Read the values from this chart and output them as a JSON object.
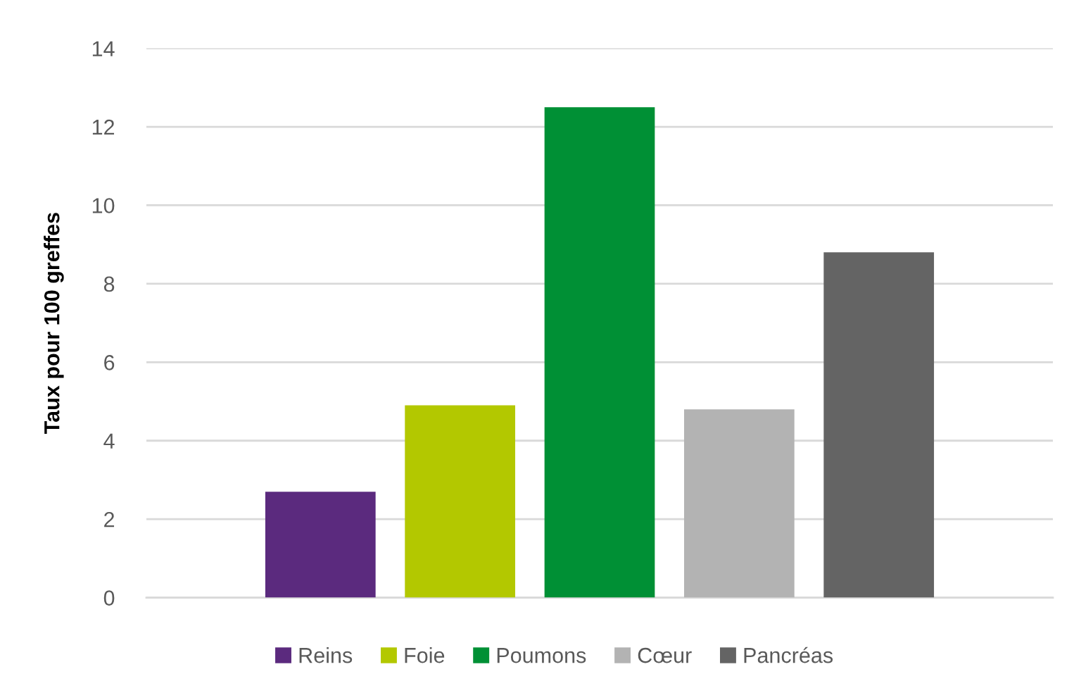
{
  "chart_data": {
    "type": "bar",
    "ylabel": "Taux pour 100 greffes",
    "categories": [
      null
    ],
    "series": [
      {
        "name": "Reins",
        "color": "#5b2a7e",
        "values": [
          2.7
        ]
      },
      {
        "name": "Foie",
        "color": "#b3c800",
        "values": [
          4.9
        ]
      },
      {
        "name": "Poumons",
        "color": "#009035",
        "values": [
          12.5
        ]
      },
      {
        "name": "Cœur",
        "color": "#b3b3b3",
        "values": [
          4.8
        ]
      },
      {
        "name": "Pancréas",
        "color": "#646464",
        "values": [
          8.8
        ]
      }
    ],
    "ylim": [
      0,
      14
    ],
    "yticks": [
      0,
      2,
      4,
      6,
      8,
      10,
      12,
      14
    ],
    "grid": "y",
    "legend": "bottom"
  }
}
